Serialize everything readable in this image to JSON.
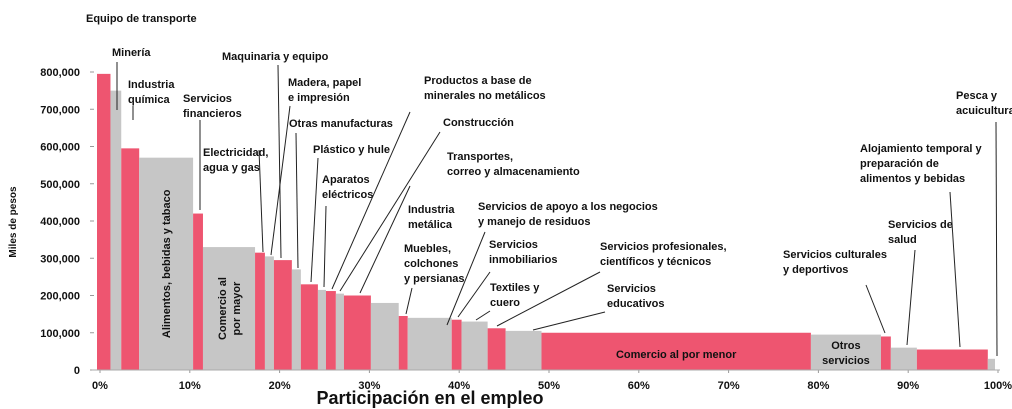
{
  "chart_data": {
    "type": "variable-width-bar",
    "y_label": "Miles de pesos",
    "x_label": "Participación en el empleo",
    "colors": [
      "#ee5570",
      "#c6c6c6"
    ],
    "categories": [
      [
        "Equipo de transporte"
      ],
      [
        "Minería"
      ],
      [
        "Industria",
        "química"
      ],
      [
        "Alimentos, bebidas y tabaco"
      ],
      [
        "Servicios",
        "financieros"
      ],
      [
        "Comercio al",
        "por mayor"
      ],
      [
        "Electricidad,",
        "agua y gas"
      ],
      [
        "Madera, papel",
        "e impresión"
      ],
      [
        "Maquinaria y equipo"
      ],
      [
        "Otras manufacturas"
      ],
      [
        "Plástico y hule"
      ],
      [
        "Aparatos",
        "eléctricos"
      ],
      [
        "Productos a base de",
        "minerales no metálicos"
      ],
      [
        "Construcción"
      ],
      [
        "Transportes,",
        "correo y almacenamiento"
      ],
      [
        "Industria",
        "metálica"
      ],
      [
        "Muebles,",
        "colchones",
        "y persianas"
      ],
      [
        "Servicios de apoyo a los negocios",
        "y manejo de residuos"
      ],
      [
        "Servicios",
        "inmobiliarios"
      ],
      [
        "Textiles y",
        "cuero"
      ],
      [
        "Servicios profesionales,",
        "científicos y técnicos"
      ],
      [
        "Servicios",
        "educativos"
      ],
      [
        "Comercio al por menor"
      ],
      [
        "Otros",
        "servicios"
      ],
      [
        "Servicios culturales",
        "y deportivos"
      ],
      [
        "Servicios de",
        "salud"
      ],
      [
        "Alojamiento temporal y",
        "preparación de",
        "alimentos y bebidas"
      ],
      [
        "Pesca y",
        "acuicultura"
      ]
    ],
    "widths": [
      1.5,
      1.2,
      2,
      6,
      1.1,
      5.8,
      1.1,
      1,
      2,
      1,
      1.9,
      0.9,
      1.1,
      0.9,
      3,
      3.1,
      1,
      4.9,
      1.1,
      2.9,
      2,
      4,
      30,
      7.8,
      1.1,
      2.9,
      7.9,
      0.8
    ],
    "values": [
      795000,
      750000,
      595000,
      570000,
      420000,
      330000,
      315000,
      305000,
      295000,
      270000,
      230000,
      215000,
      212000,
      205000,
      200000,
      180000,
      145000,
      140000,
      135000,
      130000,
      112000,
      105000,
      100000,
      95000,
      90000,
      60000,
      55000,
      30000
    ],
    "xlim": [
      0,
      100
    ],
    "xticks": [
      {
        "value": 0,
        "label": "0%"
      },
      {
        "value": 10,
        "label": "10%"
      },
      {
        "value": 20,
        "label": "20%"
      },
      {
        "value": 30,
        "label": "30%"
      },
      {
        "value": 40,
        "label": "40%"
      },
      {
        "value": 50,
        "label": "50%"
      },
      {
        "value": 60,
        "label": "60%"
      },
      {
        "value": 70,
        "label": "70%"
      },
      {
        "value": 80,
        "label": "80%"
      },
      {
        "value": 90,
        "label": "90%"
      },
      {
        "value": 100,
        "label": "100%"
      }
    ],
    "ylim": [
      0,
      800000
    ],
    "yticks": [
      0,
      {
        "value": 100000,
        "label": "100,000"
      },
      {
        "value": 200000,
        "label": "200,000"
      },
      {
        "value": 300000,
        "label": "300,000"
      },
      {
        "value": 400000,
        "label": "400,000"
      },
      {
        "value": 500000,
        "label": "500,000"
      },
      {
        "value": 600000,
        "label": "600,000"
      },
      {
        "value": 700000,
        "label": "700,000"
      },
      {
        "value": 800000,
        "label": "800,000"
      }
    ]
  }
}
